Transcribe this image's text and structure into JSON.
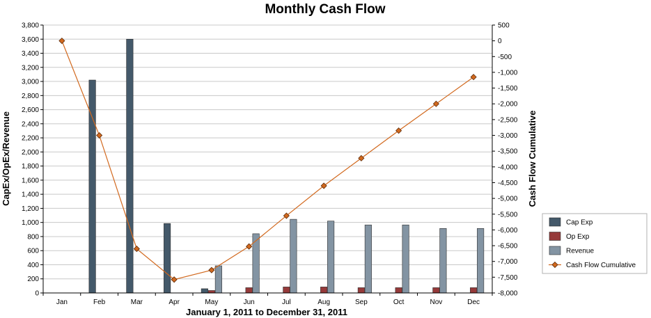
{
  "chart_data": {
    "type": "bar",
    "title": "Monthly Cash Flow",
    "xlabel": "January 1, 2011 to December 31, 2011",
    "ylabel": "CapEx/OpEx/Revenue",
    "y2label": "Cash Flow Cumulative",
    "categories": [
      "Jan",
      "Feb",
      "Mar",
      "Apr",
      "May",
      "Jun",
      "Jul",
      "Aug",
      "Sep",
      "Oct",
      "Nov",
      "Dec"
    ],
    "ylim": [
      0,
      3800
    ],
    "y2lim": [
      -8000,
      500
    ],
    "yticks": [
      "0",
      "200",
      "400",
      "600",
      "800",
      "1,000",
      "1,200",
      "1,400",
      "1,600",
      "1,800",
      "2,000",
      "2,200",
      "2,400",
      "2,600",
      "2,800",
      "3,000",
      "3,200",
      "3,400",
      "3,600",
      "3,800"
    ],
    "y2ticks": [
      "500",
      "0",
      "-500",
      "-1,000",
      "-1,500",
      "-2,000",
      "-2,500",
      "-3,000",
      "-3,500",
      "-4,000",
      "-4,500",
      "-5,000",
      "-5,500",
      "-6,000",
      "-6,500",
      "-7,000",
      "-7,500",
      "-8,000"
    ],
    "grid": true,
    "legend_position": "bottom-right",
    "series": [
      {
        "name": "Cap Exp",
        "type": "bar",
        "axis": "left",
        "color": "#44596a",
        "values": [
          0,
          3020,
          3600,
          985,
          60,
          0,
          0,
          0,
          0,
          0,
          0,
          0
        ]
      },
      {
        "name": "Op Exp",
        "type": "bar",
        "axis": "left",
        "color": "#963a3a",
        "values": [
          0,
          0,
          0,
          0,
          35,
          75,
          85,
          85,
          75,
          75,
          75,
          75
        ]
      },
      {
        "name": "Revenue",
        "type": "bar",
        "axis": "left",
        "color": "#8394a3",
        "values": [
          0,
          0,
          0,
          0,
          385,
          840,
          1045,
          1020,
          965,
          965,
          915,
          915
        ]
      },
      {
        "name": "Cash Flow Cumulative",
        "type": "line",
        "axis": "right",
        "color": "#d2691e",
        "values": [
          0,
          -3000,
          -6600,
          -7575,
          -7275,
          -6525,
          -5550,
          -4600,
          -3725,
          -2850,
          -2000,
          -1150
        ]
      }
    ]
  }
}
